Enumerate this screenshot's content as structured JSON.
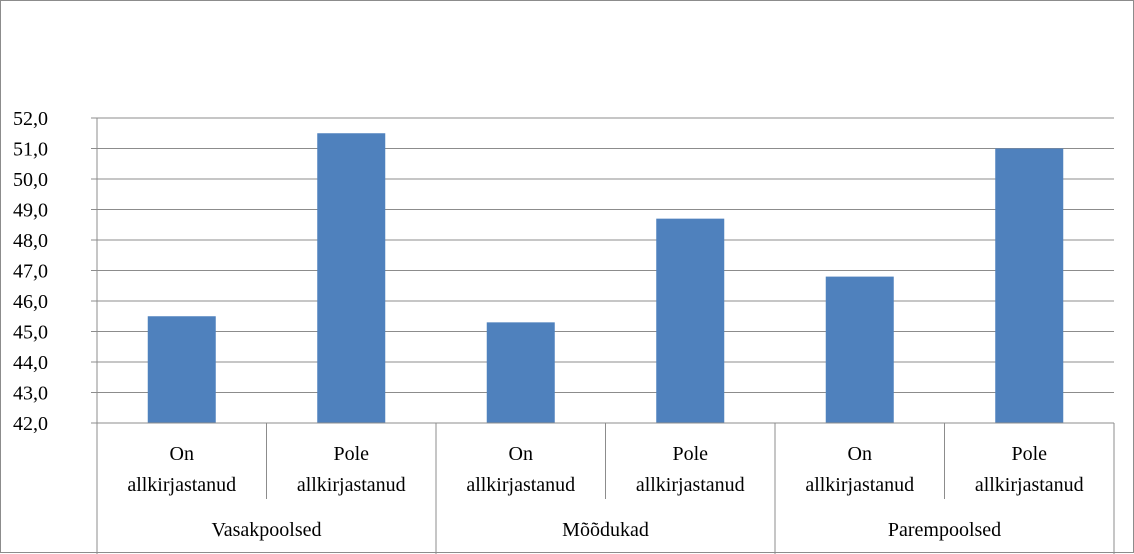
{
  "chart_data": {
    "type": "bar",
    "title": "",
    "xlabel": "",
    "ylabel": "",
    "ylim": [
      42.0,
      52.0
    ],
    "ytick_step": 1.0,
    "ytick_labels": [
      "42,0",
      "43,0",
      "44,0",
      "45,0",
      "46,0",
      "47,0",
      "48,0",
      "49,0",
      "50,0",
      "51,0",
      "52,0"
    ],
    "grid": true,
    "legend": "none",
    "bar_color": "#4F81BD",
    "groups": [
      {
        "label": "Vasakpoolsed",
        "bars": [
          {
            "label_line1": "On",
            "label_line2": "allkirjastanud",
            "value": 45.5
          },
          {
            "label_line1": "Pole",
            "label_line2": "allkirjastanud",
            "value": 51.5
          }
        ]
      },
      {
        "label": "Mõõdukad",
        "bars": [
          {
            "label_line1": "On",
            "label_line2": "allkirjastanud",
            "value": 45.3
          },
          {
            "label_line1": "Pole",
            "label_line2": "allkirjastanud",
            "value": 48.7
          }
        ]
      },
      {
        "label": "Parempoolsed",
        "bars": [
          {
            "label_line1": "On",
            "label_line2": "allkirjastanud",
            "value": 46.8
          },
          {
            "label_line1": "Pole",
            "label_line2": "allkirjastanud",
            "value": 51.0
          }
        ]
      }
    ]
  }
}
